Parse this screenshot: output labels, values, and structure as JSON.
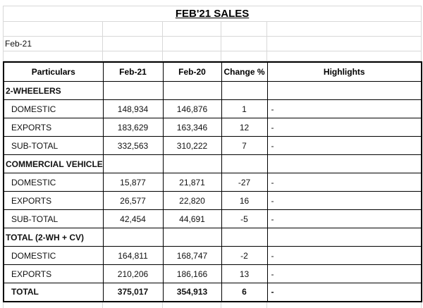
{
  "colors": {
    "background": "#ffffff",
    "gridline": "#d8d8d8",
    "table_border": "#000000",
    "text": "#111111"
  },
  "title": "FEB'21 SALES",
  "meta": {
    "period_label": "Feb-21"
  },
  "table": {
    "columns": [
      {
        "key": "label",
        "label": "Particulars"
      },
      {
        "key": "feb21",
        "label": "Feb-21"
      },
      {
        "key": "feb20",
        "label": "Feb-20"
      },
      {
        "key": "change",
        "label": "Change %"
      },
      {
        "key": "highlights",
        "label": "Highlights"
      }
    ],
    "rows": [
      {
        "type": "section",
        "label": "2-WHEELERS",
        "feb21": "",
        "feb20": "",
        "change": "",
        "highlights": ""
      },
      {
        "type": "data",
        "label": "DOMESTIC",
        "feb21": "148,934",
        "feb20": "146,876",
        "change": "1",
        "highlights": "-"
      },
      {
        "type": "data",
        "label": "EXPORTS",
        "feb21": "183,629",
        "feb20": "163,346",
        "change": "12",
        "highlights": "-"
      },
      {
        "type": "data",
        "label": "SUB-TOTAL",
        "feb21": "332,563",
        "feb20": "310,222",
        "change": "7",
        "highlights": "-"
      },
      {
        "type": "section",
        "label": "COMMERCIAL VEHICLES",
        "feb21": "",
        "feb20": "",
        "change": "",
        "highlights": ""
      },
      {
        "type": "data",
        "label": "DOMESTIC",
        "feb21": "15,877",
        "feb20": "21,871",
        "change": "-27",
        "highlights": "-"
      },
      {
        "type": "data",
        "label": "EXPORTS",
        "feb21": "26,577",
        "feb20": "22,820",
        "change": "16",
        "highlights": "-"
      },
      {
        "type": "data",
        "label": "SUB-TOTAL",
        "feb21": "42,454",
        "feb20": "44,691",
        "change": "-5",
        "highlights": "-"
      },
      {
        "type": "section",
        "label": "TOTAL (2-WH + CV)",
        "feb21": "",
        "feb20": "",
        "change": "",
        "highlights": ""
      },
      {
        "type": "data",
        "label": "DOMESTIC",
        "feb21": "164,811",
        "feb20": "168,747",
        "change": "-2",
        "highlights": "-"
      },
      {
        "type": "data",
        "label": "EXPORTS",
        "feb21": "210,206",
        "feb20": "186,166",
        "change": "13",
        "highlights": "-"
      },
      {
        "type": "total",
        "label": "TOTAL",
        "feb21": "375,017",
        "feb20": "354,913",
        "change": "6",
        "highlights": "-"
      }
    ]
  }
}
